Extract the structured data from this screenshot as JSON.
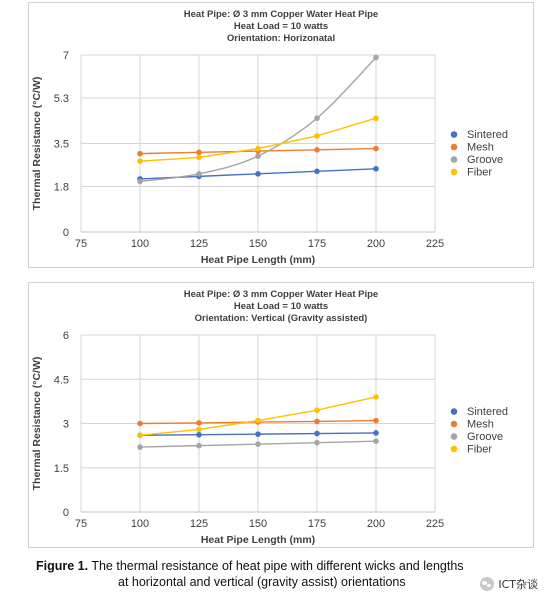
{
  "chart_data": [
    {
      "type": "line",
      "title_lines": [
        "Heat Pipe: Ø 3 mm Copper Water Heat Pipe",
        "Heat Load = 10 watts",
        "Orientation: Horizonatal"
      ],
      "xlabel": "Heat Pipe Length (mm)",
      "ylabel": "Thermal Resistance (°C/W)",
      "xlim": [
        75,
        225
      ],
      "xticks": [
        75,
        100,
        125,
        150,
        175,
        200,
        225
      ],
      "ylim": [
        0,
        7
      ],
      "yticks": [
        0,
        1.8,
        3.5,
        5.3,
        7
      ],
      "ytick_labels": [
        "0",
        "1.8",
        "3.5",
        "5.3",
        "7"
      ],
      "grid": true,
      "legend_position": "right",
      "x": [
        100,
        125,
        150,
        175,
        200
      ],
      "series": [
        {
          "name": "Sintered",
          "color": "#4472c4",
          "values": [
            2.1,
            2.2,
            2.3,
            2.4,
            2.5
          ]
        },
        {
          "name": "Mesh",
          "color": "#ed7d31",
          "values": [
            3.1,
            3.15,
            3.2,
            3.25,
            3.3
          ]
        },
        {
          "name": "Groove",
          "color": "#a5a5a5",
          "values": [
            2.0,
            2.3,
            3.0,
            4.5,
            6.9
          ]
        },
        {
          "name": "Fiber",
          "color": "#ffc000",
          "values": [
            2.8,
            2.95,
            3.3,
            3.8,
            4.5
          ]
        }
      ]
    },
    {
      "type": "line",
      "title_lines": [
        "Heat Pipe: Ø 3  mm Copper Water Heat Pipe",
        "Heat Load = 10 watts",
        "Orientation: Vertical (Gravity assisted)"
      ],
      "xlabel": "Heat Pipe Length (mm)",
      "ylabel": "Thermal Resistance (°C/W)",
      "xlim": [
        75,
        225
      ],
      "xticks": [
        75,
        100,
        125,
        150,
        175,
        200,
        225
      ],
      "ylim": [
        0,
        6
      ],
      "yticks": [
        0,
        1.5,
        3,
        4.5,
        6
      ],
      "ytick_labels": [
        "0",
        "1.5",
        "3",
        "4.5",
        "6"
      ],
      "grid": true,
      "legend_position": "right",
      "x": [
        100,
        125,
        150,
        175,
        200
      ],
      "series": [
        {
          "name": "Sintered",
          "color": "#4472c4",
          "values": [
            2.6,
            2.62,
            2.64,
            2.66,
            2.68
          ]
        },
        {
          "name": "Mesh",
          "color": "#ed7d31",
          "values": [
            3.0,
            3.02,
            3.05,
            3.07,
            3.1
          ]
        },
        {
          "name": "Groove",
          "color": "#a5a5a5",
          "values": [
            2.2,
            2.25,
            2.3,
            2.35,
            2.4
          ]
        },
        {
          "name": "Fiber",
          "color": "#ffc000",
          "values": [
            2.6,
            2.8,
            3.1,
            3.45,
            3.9
          ]
        }
      ]
    }
  ],
  "caption": {
    "label": "Figure 1.",
    "line1": " The thermal resistance of heat pipe with different wicks and lengths",
    "line2": "at horizontal and vertical (gravity assist) orientations"
  },
  "watermark": {
    "text": "ICT杂谈",
    "icon": "wechat-icon"
  }
}
